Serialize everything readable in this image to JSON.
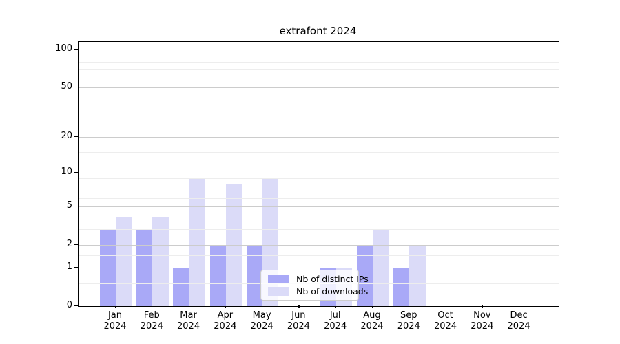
{
  "title": "extrafont 2024",
  "chart_data": {
    "type": "bar",
    "title": "extrafont 2024",
    "categories": [
      {
        "line1": "Jan",
        "line2": "2024"
      },
      {
        "line1": "Feb",
        "line2": "2024"
      },
      {
        "line1": "Mar",
        "line2": "2024"
      },
      {
        "line1": "Apr",
        "line2": "2024"
      },
      {
        "line1": "May",
        "line2": "2024"
      },
      {
        "line1": "Jun",
        "line2": "2024"
      },
      {
        "line1": "Jul",
        "line2": "2024"
      },
      {
        "line1": "Aug",
        "line2": "2024"
      },
      {
        "line1": "Sep",
        "line2": "2024"
      },
      {
        "line1": "Oct",
        "line2": "2024"
      },
      {
        "line1": "Nov",
        "line2": "2024"
      },
      {
        "line1": "Dec",
        "line2": "2024"
      }
    ],
    "series": [
      {
        "name": "Nb of distinct IPs",
        "color": "#a9a9f7",
        "values": [
          3,
          3,
          1,
          2,
          2,
          0,
          1,
          2,
          1,
          0,
          0,
          0
        ]
      },
      {
        "name": "Nb of downloads",
        "color": "#dbdbf8",
        "values": [
          4,
          4,
          9,
          8,
          9,
          0,
          1,
          3,
          2,
          0,
          0,
          0
        ]
      }
    ],
    "y_axis": {
      "scale": "log1p",
      "ticks": [
        0,
        1,
        2,
        5,
        10,
        20,
        50,
        100
      ],
      "minor_gridlines": [
        0.5,
        1.5,
        3,
        4,
        6,
        7,
        8,
        9,
        15,
        30,
        40,
        60,
        70,
        80,
        90
      ],
      "ylim_top": 113
    },
    "xlabel": "",
    "ylabel": "",
    "grid": true,
    "legend_position": "bottom-center-inside"
  },
  "colors": {
    "bar_distinct_ips": "#a9a9f7",
    "bar_downloads": "#dbdbf8",
    "grid_major": "#cccccc",
    "grid_minor": "#ededed",
    "axis": "#000000",
    "legend_border": "#cccccc"
  }
}
